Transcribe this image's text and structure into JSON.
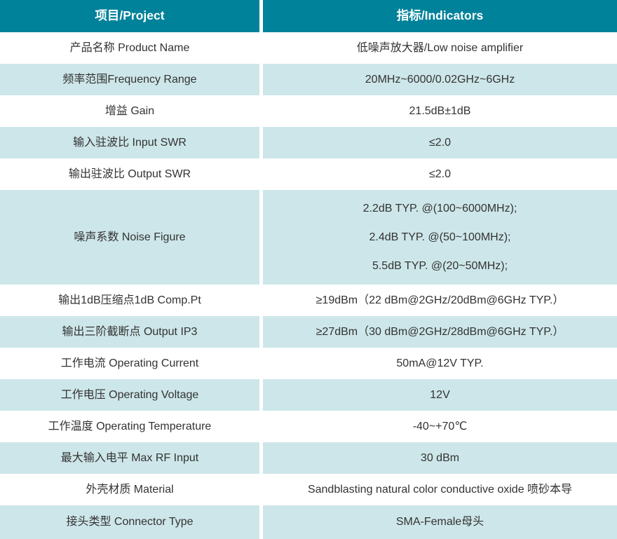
{
  "colors": {
    "header_bg": "#00829a",
    "header_text": "#ffffff",
    "alt_row_bg": "#cde6e9",
    "row_bg": "#ffffff",
    "body_text": "#333333"
  },
  "header": {
    "project": "项目/Project",
    "indicators": "指标/Indicators"
  },
  "rows": [
    {
      "label": "产品名称 Product Name",
      "value": "低噪声放大器/Low noise amplifier"
    },
    {
      "label": "频率范围Frequency Range",
      "value": "20MHz~6000/0.02GHz~6GHz"
    },
    {
      "label": "增益 Gain",
      "value": "21.5dB±1dB"
    },
    {
      "label": "输入驻波比 Input SWR",
      "value": "≤2.0"
    },
    {
      "label": "输出驻波比 Output SWR",
      "value": "≤2.0"
    },
    {
      "label": "噪声系数 Noise Figure",
      "values": [
        "2.2dB TYP. @(100~6000MHz);",
        "2.4dB TYP. @(50~100MHz);",
        "5.5dB TYP. @(20~50MHz);"
      ]
    },
    {
      "label": "输出1dB压缩点1dB Comp.Pt",
      "value": "≥19dBm（22 dBm@2GHz/20dBm@6GHz TYP.）"
    },
    {
      "label": "输出三阶截断点 Output IP3",
      "value": "≥27dBm（30 dBm@2GHz/28dBm@6GHz TYP.）"
    },
    {
      "label": "工作电流 Operating Current",
      "value": "50mA@12V TYP."
    },
    {
      "label": "工作电压 Operating Voltage",
      "value": "12V"
    },
    {
      "label": "工作温度 Operating Temperature",
      "value": "-40~+70℃"
    },
    {
      "label": "最大输入电平 Max RF Input",
      "value": "30 dBm"
    },
    {
      "label": "外壳材质 Material",
      "value": "Sandblasting natural color conductive oxide 喷砂本导"
    },
    {
      "label": "接头类型 Connector Type",
      "value": "SMA-Female母头"
    }
  ]
}
